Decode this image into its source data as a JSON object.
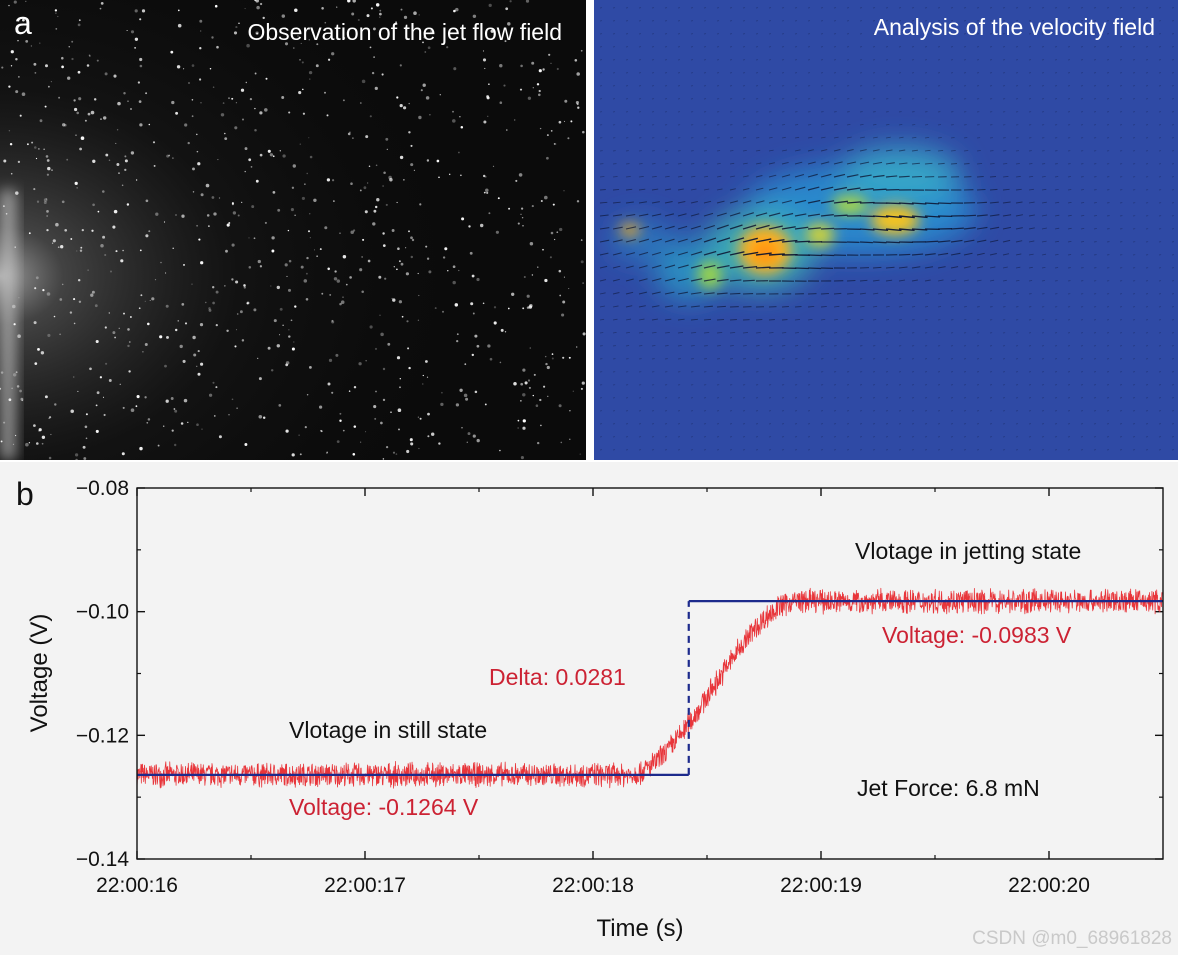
{
  "panel_a": {
    "label": "a",
    "left_title": "Observation of the jet flow field",
    "right_title": "Analysis of the velocity field"
  },
  "panel_b": {
    "label": "b"
  },
  "watermark": "CSDN @m0_68961828",
  "colors": {
    "measured": "#e8353a",
    "fit": "#1c2a8c",
    "annotation_red": "#cc2233",
    "plot_bg": "#f3f3f3",
    "field_bg": "#2f4aa5"
  },
  "chart_data": {
    "type": "line",
    "title": "",
    "xlabel": "Time (s)",
    "ylabel": "Voltage (V)",
    "xlim": [
      0,
      4.5
    ],
    "ylim": [
      -0.14,
      -0.08
    ],
    "xticks": [
      {
        "value": 0,
        "label": "22:00:16"
      },
      {
        "value": 1,
        "label": "22:00:17"
      },
      {
        "value": 2,
        "label": "22:00:18"
      },
      {
        "value": 3,
        "label": "22:00:19"
      },
      {
        "value": 4,
        "label": "22:00:20"
      }
    ],
    "yticks": [
      {
        "value": -0.14,
        "label": "−0.14"
      },
      {
        "value": -0.12,
        "label": "−0.12"
      },
      {
        "value": -0.1,
        "label": "−0.10"
      },
      {
        "value": -0.08,
        "label": "−0.08"
      }
    ],
    "series": [
      {
        "name": "measured voltage",
        "color": "#e8353a",
        "baseline_still": -0.1264,
        "baseline_jetting": -0.0983,
        "transition_start": 2.15,
        "transition_end": 2.9,
        "noise_amplitude": 0.0022
      },
      {
        "name": "step fit",
        "color": "#1c2a8c",
        "x": [
          0,
          2.42,
          2.42,
          4.5
        ],
        "y": [
          -0.1264,
          -0.1264,
          -0.0983,
          -0.0983
        ]
      }
    ],
    "annotations": {
      "jetting_state": "Vlotage in jetting state",
      "jetting_voltage": "Voltage: -0.0983 V",
      "delta": "Delta: 0.0281",
      "still_state": "Vlotage in still state",
      "still_voltage": "Voltage: -0.1264 V",
      "jet_force": "Jet Force: 6.8 mN"
    }
  }
}
